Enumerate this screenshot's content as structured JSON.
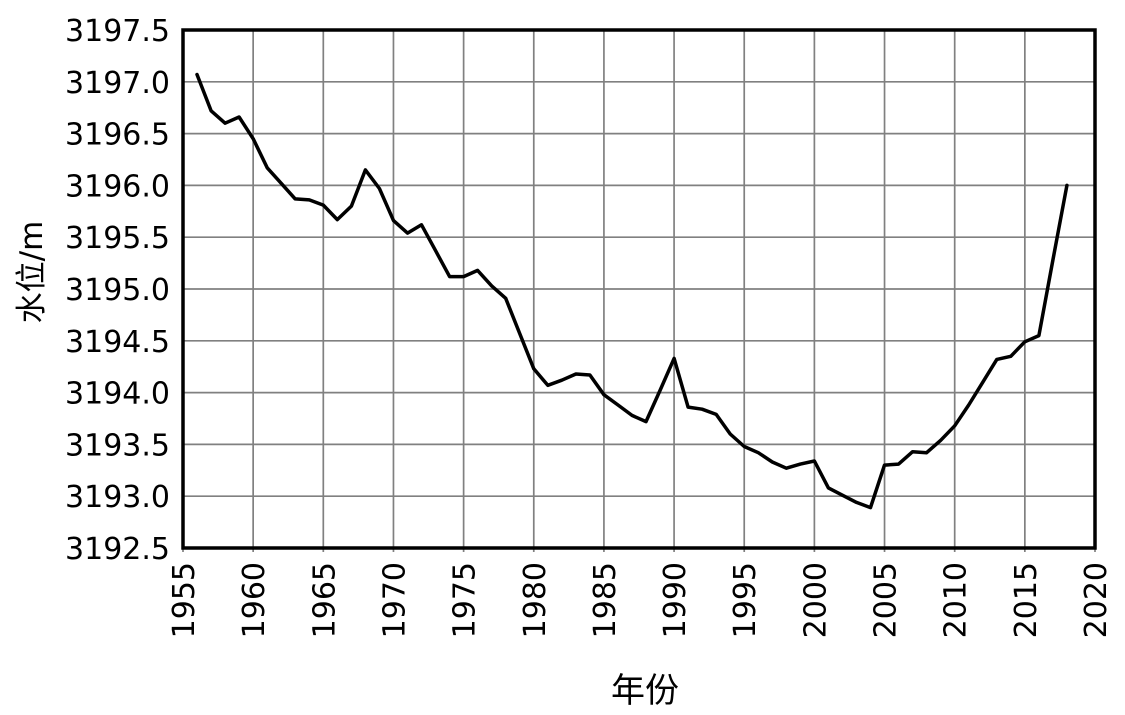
{
  "chart_data": {
    "type": "line",
    "title": "",
    "xlabel": "年份",
    "ylabel": "水位/m",
    "xlim": [
      1955,
      2020
    ],
    "ylim": [
      3192.5,
      3197.5
    ],
    "grid": true,
    "legend": "none",
    "line_color": "#000000",
    "grid_color": "#808080",
    "frame_color": "#000000",
    "xticks": [
      "1955",
      "1960",
      "1965",
      "1970",
      "1975",
      "1980",
      "1985",
      "1990",
      "1995",
      "2000",
      "2005",
      "2010",
      "2015",
      "2020"
    ],
    "yticks": [
      "3192.5",
      "3193.0",
      "3193.5",
      "3194.0",
      "3194.5",
      "3195.0",
      "3195.5",
      "3196.0",
      "3196.5",
      "3197.0",
      "3197.5"
    ],
    "series": [
      {
        "name": "水位",
        "x": [
          1956,
          1957,
          1958,
          1959,
          1960,
          1961,
          1962,
          1963,
          1964,
          1965,
          1966,
          1967,
          1968,
          1969,
          1970,
          1971,
          1972,
          1973,
          1974,
          1975,
          1976,
          1977,
          1978,
          1979,
          1980,
          1981,
          1982,
          1983,
          1984,
          1985,
          1986,
          1987,
          1988,
          1989,
          1990,
          1991,
          1992,
          1993,
          1994,
          1995,
          1996,
          1997,
          1998,
          1999,
          2000,
          2001,
          2002,
          2003,
          2004,
          2005,
          2006,
          2007,
          2008,
          2009,
          2010,
          2011,
          2012,
          2013,
          2014,
          2015,
          2016,
          2017,
          2018
        ],
        "values": [
          3197.07,
          3196.72,
          3196.6,
          3196.66,
          3196.45,
          3196.17,
          3196.02,
          3195.87,
          3195.86,
          3195.81,
          3195.67,
          3195.8,
          3196.15,
          3195.97,
          3195.66,
          3195.54,
          3195.62,
          3195.37,
          3195.12,
          3195.12,
          3195.18,
          3195.03,
          3194.91,
          3194.57,
          3194.23,
          3194.07,
          3194.12,
          3194.18,
          3194.17,
          3193.98,
          3193.88,
          3193.78,
          3193.72,
          3194.02,
          3194.33,
          3193.86,
          3193.84,
          3193.79,
          3193.6,
          3193.48,
          3193.42,
          3193.33,
          3193.27,
          3193.31,
          3193.34,
          3193.08,
          3193.01,
          3192.94,
          3192.89,
          3193.3,
          3193.31,
          3193.43,
          3193.42,
          3193.54,
          3193.68,
          3193.88,
          3194.1,
          3194.32,
          3194.35,
          3194.49,
          3194.55,
          3195.28,
          3196.0
        ]
      }
    ]
  },
  "layout_labels": {
    "y_axis_title": "水位/m",
    "x_axis_title": "年份"
  }
}
